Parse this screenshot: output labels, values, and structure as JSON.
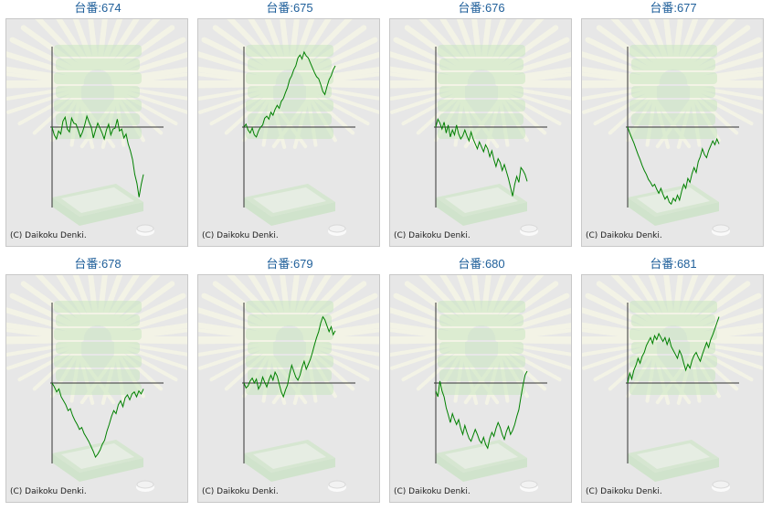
{
  "colors": {
    "title": "#1f5f9a",
    "panel_bg": "#e7e7e7",
    "panel_border": "#c8c8c8",
    "axis": "#333333",
    "line": "#008000",
    "decor_green": "#c9e6c0",
    "decor_rays": "#f3f3e6"
  },
  "background_icon": "machine-illustration-watermark",
  "charts": [
    {
      "title": "台番:674",
      "copyright": "(C) Daikoku Denki.",
      "chart_data": {
        "type": "line",
        "y": [
          0,
          -8,
          -12,
          -4,
          -7,
          6,
          10,
          -2,
          -5,
          9,
          4,
          3,
          -3,
          -10,
          -5,
          2,
          11,
          5,
          0,
          -11,
          -3,
          4,
          -1,
          -6,
          -12,
          -3,
          3,
          -8,
          -2,
          -1,
          8,
          -4,
          -2,
          -11,
          -7,
          -17,
          -24,
          -33,
          -48,
          -57,
          -71,
          -58,
          -48
        ]
      }
    },
    {
      "title": "台番:675",
      "copyright": "(C) Daikoku Denki.",
      "chart_data": {
        "type": "line",
        "y": [
          0,
          3,
          -3,
          -6,
          -1,
          -8,
          -10,
          -4,
          0,
          2,
          9,
          11,
          8,
          15,
          12,
          18,
          22,
          19,
          26,
          29,
          35,
          40,
          48,
          52,
          58,
          62,
          70,
          73,
          69,
          76,
          72,
          70,
          65,
          60,
          55,
          51,
          49,
          43,
          36,
          33,
          41,
          48,
          52,
          58,
          62
        ]
      }
    },
    {
      "title": "台番:676",
      "copyright": "(C) Daikoku Denki.",
      "chart_data": {
        "type": "line",
        "y": [
          0,
          8,
          4,
          -2,
          5,
          -6,
          2,
          -10,
          -3,
          -8,
          2,
          -7,
          -12,
          -9,
          -3,
          -9,
          -14,
          -5,
          -12,
          -17,
          -22,
          -15,
          -20,
          -25,
          -18,
          -22,
          -30,
          -24,
          -33,
          -40,
          -32,
          -36,
          -44,
          -38,
          -45,
          -52,
          -61,
          -70,
          -58,
          -50,
          -56,
          -41,
          -44,
          -48,
          -55
        ]
      }
    },
    {
      "title": "台番:677",
      "copyright": "(C) Daikoku Denki.",
      "chart_data": {
        "type": "line",
        "y": [
          0,
          -6,
          -11,
          -16,
          -22,
          -28,
          -33,
          -39,
          -44,
          -48,
          -53,
          -56,
          -60,
          -58,
          -63,
          -67,
          -62,
          -68,
          -73,
          -70,
          -76,
          -78,
          -72,
          -75,
          -69,
          -74,
          -65,
          -58,
          -62,
          -52,
          -56,
          -47,
          -41,
          -46,
          -35,
          -30,
          -22,
          -28,
          -31,
          -24,
          -19,
          -14,
          -18,
          -12,
          -17
        ]
      }
    },
    {
      "title": "台番:678",
      "copyright": "(C) Daikoku Denki.",
      "chart_data": {
        "type": "line",
        "y": [
          0,
          -4,
          -9,
          -6,
          -14,
          -18,
          -22,
          -28,
          -26,
          -33,
          -38,
          -42,
          -47,
          -45,
          -51,
          -55,
          -59,
          -64,
          -69,
          -75,
          -72,
          -68,
          -62,
          -58,
          -49,
          -42,
          -34,
          -28,
          -31,
          -22,
          -18,
          -24,
          -15,
          -12,
          -17,
          -11,
          -9,
          -14,
          -8,
          -11,
          -6
        ]
      }
    },
    {
      "title": "台番:679",
      "copyright": "(C) Daikoku Denki.",
      "chart_data": {
        "type": "line",
        "y": [
          0,
          -5,
          -3,
          2,
          5,
          0,
          4,
          -6,
          -2,
          6,
          1,
          -4,
          3,
          8,
          3,
          11,
          7,
          -1,
          -9,
          -14,
          -7,
          -2,
          9,
          18,
          12,
          6,
          3,
          8,
          16,
          22,
          14,
          19,
          24,
          31,
          39,
          46,
          52,
          61,
          67,
          64,
          58,
          52,
          57,
          49,
          53
        ]
      }
    },
    {
      "title": "台番:680",
      "copyright": "(C) Daikoku Denki.",
      "chart_data": {
        "type": "line",
        "y": [
          -8,
          -14,
          2,
          -8,
          -14,
          -25,
          -32,
          -40,
          -31,
          -37,
          -42,
          -37,
          -46,
          -52,
          -43,
          -50,
          -56,
          -59,
          -53,
          -47,
          -52,
          -58,
          -61,
          -55,
          -62,
          -66,
          -56,
          -50,
          -54,
          -46,
          -40,
          -45,
          -52,
          -57,
          -49,
          -44,
          -52,
          -48,
          -42,
          -34,
          -27,
          -14,
          -2,
          8,
          12
        ]
      }
    },
    {
      "title": "台番:681",
      "copyright": "(C) Daikoku Denki.",
      "chart_data": {
        "type": "line",
        "y": [
          0,
          10,
          4,
          13,
          18,
          25,
          20,
          27,
          31,
          38,
          42,
          46,
          40,
          48,
          44,
          50,
          46,
          42,
          46,
          39,
          45,
          37,
          33,
          29,
          25,
          33,
          28,
          20,
          13,
          19,
          15,
          23,
          28,
          31,
          26,
          22,
          29,
          35,
          41,
          36,
          44,
          49,
          55,
          61,
          67
        ]
      }
    }
  ]
}
